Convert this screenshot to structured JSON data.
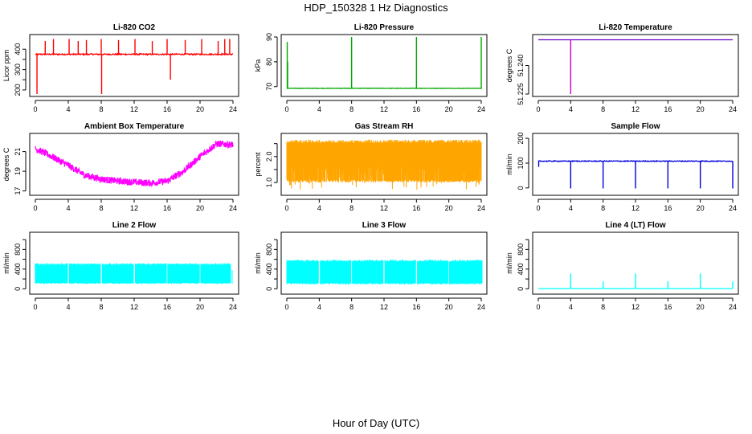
{
  "figure": {
    "title": "HDP_150328  1 Hz Diagnostics",
    "xlabel": "Hour of Day (UTC)"
  },
  "chart_data": [
    {
      "type": "line",
      "title": "Li-820 CO2",
      "ylabel": "Licor ppm",
      "color": "#ff0000",
      "xlim": [
        0,
        24
      ],
      "ylim": [
        180,
        460
      ],
      "xticks": [
        "0",
        "4",
        "8",
        "12",
        "16",
        "20",
        "24"
      ],
      "yticks": [
        200,
        250,
        300,
        350,
        400
      ],
      "ytick_labels": [
        "200",
        "",
        "300",
        "",
        "400"
      ],
      "series": [
        {
          "name": "CO2",
          "baseline": 375,
          "noise": 6,
          "band": 0,
          "spikes": [
            [
              0.2,
              180
            ],
            [
              1.2,
              440
            ],
            [
              2.2,
              450
            ],
            [
              4.1,
              450
            ],
            [
              5.2,
              440
            ],
            [
              6.2,
              445
            ],
            [
              8.0,
              450
            ],
            [
              8.05,
              180
            ],
            [
              10.1,
              445
            ],
            [
              12.1,
              450
            ],
            [
              14.2,
              440
            ],
            [
              16.0,
              450
            ],
            [
              16.4,
              250
            ],
            [
              18.2,
              445
            ],
            [
              20.2,
              450
            ],
            [
              22.2,
              440
            ],
            [
              23.0,
              450
            ],
            [
              23.6,
              450
            ]
          ],
          "x_end": 24.0
        }
      ]
    },
    {
      "type": "line",
      "title": "Li-820 Pressure",
      "ylabel": "kPa",
      "color": "#00aa00",
      "xlim": [
        0,
        24
      ],
      "ylim": [
        67,
        90
      ],
      "xticks": [
        "0",
        "4",
        "8",
        "12",
        "16",
        "20",
        "24"
      ],
      "yticks": [
        70,
        80,
        90
      ],
      "ytick_labels": [
        "70",
        "80",
        "90"
      ],
      "series": [
        {
          "name": "Pressure",
          "baseline": 69.3,
          "noise": 0.15,
          "band": 0,
          "spikes": [
            [
              0.05,
              88
            ],
            [
              0.1,
              80
            ],
            [
              8.0,
              90
            ],
            [
              16.0,
              90
            ],
            [
              24.0,
              90
            ]
          ],
          "x_end": 24.1
        }
      ]
    },
    {
      "type": "line",
      "title": "Li-820 Temperature",
      "ylabel": "degrees C",
      "color": "#cc00cc",
      "xlim": [
        0,
        24
      ],
      "ylim": [
        51.225,
        51.255
      ],
      "xticks": [
        "0",
        "4",
        "8",
        "12",
        "16",
        "20",
        "24"
      ],
      "yticks": [
        51.225,
        51.24
      ],
      "ytick_labels": [
        "51.225",
        "51.240"
      ],
      "series": [
        {
          "name": "Temperature",
          "baseline": 51.2535,
          "noise": 0,
          "band": 0,
          "spikes": [
            [
              4.0,
              51.225
            ]
          ],
          "x_end": 24.0,
          "flat_color": "#6a00c8"
        }
      ]
    },
    {
      "type": "line",
      "title": "Ambient Box Temperature",
      "ylabel": "degrees C",
      "color": "#ff00ff",
      "xlim": [
        0,
        24
      ],
      "ylim": [
        16.8,
        22.6
      ],
      "xticks": [
        "0",
        "4",
        "8",
        "12",
        "16",
        "20",
        "24"
      ],
      "yticks": [
        17,
        19,
        21
      ],
      "ytick_labels": [
        "17",
        "19",
        "21"
      ],
      "series": [
        {
          "name": "Box Temp",
          "profile": [
            [
              0,
              21.3
            ],
            [
              2,
              20.5
            ],
            [
              4,
              19.6
            ],
            [
              6,
              18.6
            ],
            [
              8,
              18.2
            ],
            [
              10,
              18.0
            ],
            [
              12,
              17.9
            ],
            [
              14,
              17.8
            ],
            [
              16,
              18.0
            ],
            [
              18,
              19.0
            ],
            [
              20,
              20.5
            ],
            [
              22,
              21.8
            ],
            [
              24,
              21.7
            ]
          ],
          "band": 0.7,
          "x_end": 24.0
        }
      ]
    },
    {
      "type": "line",
      "title": "Gas Stream RH",
      "ylabel": "percent",
      "color": "#ffa500",
      "xlim": [
        0,
        24
      ],
      "ylim": [
        0.6,
        2.8
      ],
      "xticks": [
        "0",
        "4",
        "8",
        "12",
        "16",
        "20",
        "24"
      ],
      "yticks": [
        1.0,
        1.5,
        2.0,
        2.5
      ],
      "ytick_labels": [
        "1.0",
        "",
        "2.0",
        ""
      ],
      "series": [
        {
          "name": "RH",
          "band_low": 1.0,
          "band_high": 2.65,
          "dip_min": 0.7,
          "x_end": 24.0
        }
      ]
    },
    {
      "type": "line",
      "title": "Sample Flow",
      "ylabel": "ml/min",
      "color": "#0000dd",
      "xlim": [
        0,
        24
      ],
      "ylim": [
        -20,
        210
      ],
      "xticks": [
        "0",
        "4",
        "8",
        "12",
        "16",
        "20",
        "24"
      ],
      "yticks": [
        0,
        100,
        200
      ],
      "ytick_labels": [
        "0",
        "100",
        "200"
      ],
      "series": [
        {
          "name": "Sample Flow",
          "baseline": 108,
          "noise": 3,
          "band": 0,
          "spikes": [
            [
              0.05,
              85
            ],
            [
              4.0,
              -2
            ],
            [
              8.0,
              -2
            ],
            [
              12.0,
              -2
            ],
            [
              16.0,
              -2
            ],
            [
              20.0,
              -2
            ],
            [
              24.0,
              -2
            ]
          ],
          "x_end": 24.0
        }
      ]
    },
    {
      "type": "line",
      "title": "Line 2 Flow",
      "ylabel": "ml/min",
      "color": "#00ffff",
      "xlim": [
        0,
        24
      ],
      "ylim": [
        -60,
        1100
      ],
      "xticks": [
        "0",
        "4",
        "8",
        "12",
        "16",
        "20",
        "24"
      ],
      "yticks": [
        0,
        200,
        400,
        600,
        800,
        1000
      ],
      "ytick_labels": [
        "0",
        "",
        "400",
        "",
        "800",
        ""
      ],
      "series": [
        {
          "name": "Line 2",
          "band_low": 100,
          "band_high": 520,
          "gaps": [
            4,
            8,
            12,
            16,
            20
          ],
          "x_end": 23.7,
          "tail": [
            [
              23.9,
              380
            ]
          ]
        }
      ]
    },
    {
      "type": "line",
      "title": "Line 3 Flow",
      "ylabel": "ml/min",
      "color": "#00ffff",
      "xlim": [
        0,
        24
      ],
      "ylim": [
        -60,
        1100
      ],
      "xticks": [
        "0",
        "4",
        "8",
        "12",
        "16",
        "20",
        "24"
      ],
      "yticks": [
        0,
        200,
        400,
        600,
        800,
        1000
      ],
      "ytick_labels": [
        "0",
        "",
        "400",
        "",
        "800",
        ""
      ],
      "series": [
        {
          "name": "Line 3",
          "band_low": 90,
          "band_high": 590,
          "gaps": [
            4,
            8,
            12,
            16,
            20
          ],
          "x_end": 24.1,
          "tail": []
        }
      ]
    },
    {
      "type": "line",
      "title": "Line 4 (LT) Flow",
      "ylabel": "ml/min",
      "color": "#00ffff",
      "xlim": [
        0,
        24
      ],
      "ylim": [
        -60,
        1100
      ],
      "xticks": [
        "0",
        "4",
        "8",
        "12",
        "16",
        "20",
        "24"
      ],
      "yticks": [
        0,
        200,
        400,
        600,
        800,
        1000
      ],
      "ytick_labels": [
        "0",
        "",
        "400",
        "",
        "800",
        ""
      ],
      "series": [
        {
          "name": "Line 4",
          "baseline": 5,
          "noise": 2,
          "band": 0,
          "spikes": [
            [
              4.0,
              310
            ],
            [
              8.0,
              150
            ],
            [
              12.0,
              310
            ],
            [
              16.0,
              150
            ],
            [
              20.0,
              310
            ],
            [
              24.0,
              150
            ]
          ],
          "x_end": 24.0
        }
      ]
    }
  ]
}
